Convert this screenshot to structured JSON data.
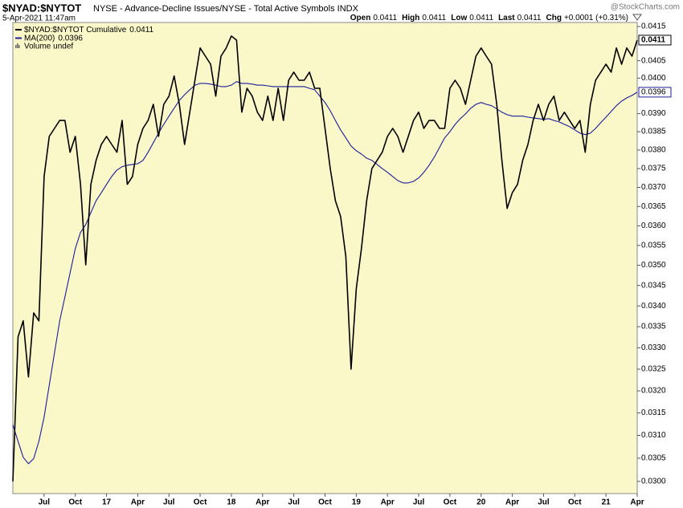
{
  "chart_data": {
    "type": "line",
    "title": "$NYAD:$NYTOT",
    "subtitle": "NYSE - Advance-Decline Issues/NYSE - Total Active Symbols  INDX",
    "timestamp": "5-Apr-2021 11:47am",
    "watermark": "@StockCharts.com",
    "quote": [
      {
        "label": "Open",
        "value": "0.0411"
      },
      {
        "label": "High",
        "value": "0.0411"
      },
      {
        "label": "Low",
        "value": "0.0411"
      },
      {
        "label": "Last",
        "value": "0.0411"
      },
      {
        "label": "Chg",
        "value": "+0.0001 (+0.31%)"
      }
    ],
    "legend_extra": "Volume undef",
    "log_scale": true,
    "grid": false,
    "legend": "upper left",
    "categories": [
      null,
      null,
      null,
      null,
      null,
      null,
      "Jul",
      null,
      null,
      null,
      null,
      null,
      "Oct",
      null,
      null,
      null,
      null,
      null,
      "17",
      null,
      null,
      null,
      null,
      null,
      "Apr",
      null,
      null,
      null,
      null,
      null,
      "Jul",
      null,
      null,
      null,
      null,
      null,
      "Oct",
      null,
      null,
      null,
      null,
      null,
      "18",
      null,
      null,
      null,
      null,
      null,
      "Apr",
      null,
      null,
      null,
      null,
      null,
      "Jul",
      null,
      null,
      null,
      null,
      null,
      "Oct",
      null,
      null,
      null,
      null,
      null,
      "19",
      null,
      null,
      null,
      null,
      null,
      "Apr",
      null,
      null,
      null,
      null,
      null,
      "Jul",
      null,
      null,
      null,
      null,
      null,
      "Oct",
      null,
      null,
      null,
      null,
      null,
      "20",
      null,
      null,
      null,
      null,
      null,
      "Apr",
      null,
      null,
      null,
      null,
      null,
      "Jul",
      null,
      null,
      null,
      null,
      null,
      "Oct",
      null,
      null,
      null,
      null,
      null,
      "21",
      null,
      null,
      null,
      null,
      null,
      "Apr"
    ],
    "series": [
      {
        "name": "$NYAD:$NYTOT Cumulative",
        "color": "#000000",
        "values": [
          0.03,
          0.03326,
          0.03364,
          0.03232,
          0.03383,
          0.03364,
          0.03729,
          0.03837,
          0.03859,
          0.03881,
          0.03881,
          0.03794,
          0.03837,
          0.03708,
          0.03501,
          0.03708,
          0.03772,
          0.03815,
          0.03837,
          0.03815,
          0.03794,
          0.03881,
          0.03708,
          0.03729,
          0.03815,
          0.03859,
          0.03881,
          0.03926,
          0.03837,
          0.03926,
          0.03949,
          0.04006,
          0.03926,
          0.03815,
          0.03904,
          0.03994,
          0.04087,
          0.04063,
          0.0404,
          0.03949,
          0.04063,
          0.04087,
          0.04122,
          0.0411,
          0.03904,
          0.03971,
          0.03949,
          0.03904,
          0.03881,
          0.03949,
          0.03881,
          0.03971,
          0.03881,
          0.03994,
          0.04017,
          0.03994,
          0.03994,
          0.04017,
          0.03971,
          0.03971,
          0.03859,
          0.0375,
          0.03665,
          0.03624,
          0.03522,
          0.0325,
          0.03442,
          0.03542,
          0.03665,
          0.0375,
          0.03772,
          0.03794,
          0.03837,
          0.03859,
          0.03837,
          0.03794,
          0.03837,
          0.03881,
          0.03904,
          0.03859,
          0.03881,
          0.03881,
          0.03859,
          0.03859,
          0.03971,
          0.03994,
          0.03971,
          0.03926,
          0.03994,
          0.04063,
          0.04087,
          0.04063,
          0.0404,
          0.03926,
          0.03772,
          0.03645,
          0.03686,
          0.03708,
          0.03772,
          0.03815,
          0.03881,
          0.03926,
          0.03881,
          0.03926,
          0.03949,
          0.03881,
          0.03904,
          0.03881,
          0.03859,
          0.03881,
          0.03794,
          0.03926,
          0.03994,
          0.04017,
          0.0404,
          0.04017,
          0.04087,
          0.0404,
          0.04087,
          0.04063,
          0.0411
        ]
      },
      {
        "name": "MA(200)",
        "color": "#1c1c9c",
        "values": [
          0.03123,
          0.03087,
          0.03052,
          0.03038,
          0.03049,
          0.03087,
          0.03141,
          0.03213,
          0.03288,
          0.03364,
          0.03422,
          0.03481,
          0.03542,
          0.03583,
          0.03603,
          0.03634,
          0.03665,
          0.03686,
          0.03708,
          0.03729,
          0.03746,
          0.03755,
          0.03759,
          0.03761,
          0.03763,
          0.03772,
          0.03794,
          0.0382,
          0.03846,
          0.0387,
          0.03893,
          0.03915,
          0.03937,
          0.03953,
          0.03967,
          0.0398,
          0.03985,
          0.03985,
          0.03983,
          0.0398,
          0.03976,
          0.03976,
          0.0398,
          0.0399,
          0.03985,
          0.03985,
          0.03983,
          0.0398,
          0.0398,
          0.03978,
          0.03976,
          0.03976,
          0.03976,
          0.03976,
          0.03976,
          0.03976,
          0.03976,
          0.03971,
          0.03967,
          0.03949,
          0.03931,
          0.03908,
          0.03881,
          0.03855,
          0.03833,
          0.03811,
          0.03798,
          0.03789,
          0.03778,
          0.03772,
          0.03761,
          0.0375,
          0.0374,
          0.03729,
          0.03718,
          0.03712,
          0.03712,
          0.03716,
          0.03725,
          0.0374,
          0.03759,
          0.03781,
          0.03807,
          0.03833,
          0.0385,
          0.0387,
          0.03886,
          0.03899,
          0.03915,
          0.03926,
          0.03931,
          0.03926,
          0.03922,
          0.03913,
          0.03904,
          0.03897,
          0.03893,
          0.03893,
          0.03893,
          0.0389,
          0.03888,
          0.03886,
          0.03884,
          0.03886,
          0.03881,
          0.03877,
          0.0387,
          0.03864,
          0.03855,
          0.03846,
          0.03842,
          0.03846,
          0.03859,
          0.03875,
          0.0389,
          0.03906,
          0.03922,
          0.03935,
          0.03944,
          0.03951,
          0.0396
        ]
      }
    ],
    "ylim": [
      0.02974,
      0.04162
    ],
    "yticks": [
      {
        "value": 0.03,
        "label": "0.0300"
      },
      {
        "value": 0.0305,
        "label": "0.0305"
      },
      {
        "value": 0.031,
        "label": "0.0310"
      },
      {
        "value": 0.0315,
        "label": "0.0315"
      },
      {
        "value": 0.032,
        "label": "0.0320"
      },
      {
        "value": 0.0325,
        "label": "0.0325"
      },
      {
        "value": 0.033,
        "label": "0.0330"
      },
      {
        "value": 0.0335,
        "label": "0.0335"
      },
      {
        "value": 0.034,
        "label": "0.0340"
      },
      {
        "value": 0.0345,
        "label": "0.0345"
      },
      {
        "value": 0.035,
        "label": "0.0350"
      },
      {
        "value": 0.0355,
        "label": "0.0355"
      },
      {
        "value": 0.036,
        "label": "0.0360"
      },
      {
        "value": 0.0365,
        "label": "0.0365"
      },
      {
        "value": 0.037,
        "label": "0.0370"
      },
      {
        "value": 0.0375,
        "label": "0.0375"
      },
      {
        "value": 0.038,
        "label": "0.0380"
      },
      {
        "value": 0.0385,
        "label": "0.0385"
      },
      {
        "value": 0.039,
        "label": "0.0390"
      },
      {
        "value": 0.04,
        "label": "0.0400"
      },
      {
        "value": 0.0405,
        "label": "0.0405"
      },
      {
        "value": 0.0415,
        "label": "0.0415"
      }
    ]
  }
}
